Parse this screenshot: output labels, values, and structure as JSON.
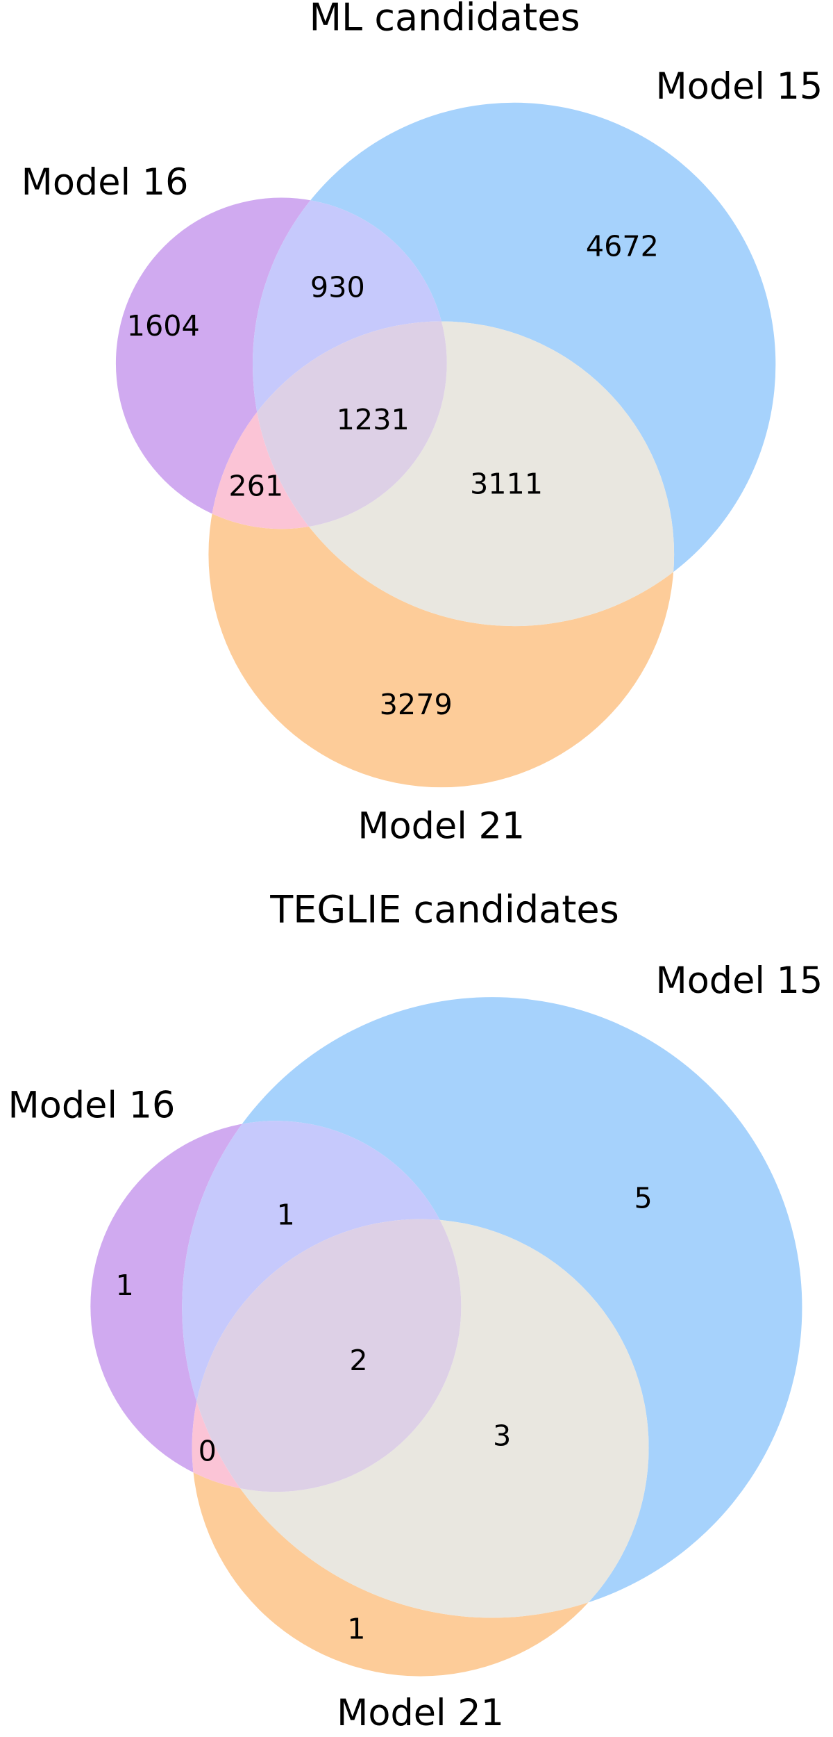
{
  "chart_data": [
    {
      "type": "venn",
      "title": "ML candidates",
      "sets": [
        {
          "name": "Model 16",
          "color": "#d0aaf0"
        },
        {
          "name": "Model 15",
          "color": "#a6d2fc"
        },
        {
          "name": "Model 21",
          "color": "#fdcc99"
        }
      ],
      "regions": [
        {
          "sets": [
            0
          ],
          "value": 1604,
          "color": "#d0aaf0"
        },
        {
          "sets": [
            1
          ],
          "value": 4672,
          "color": "#a6d2fc"
        },
        {
          "sets": [
            2
          ],
          "value": 3279,
          "color": "#fdcc99"
        },
        {
          "sets": [
            0,
            1
          ],
          "value": 930,
          "color": "#c6c9fc"
        },
        {
          "sets": [
            0,
            2
          ],
          "value": 261,
          "color": "#fbc4d6"
        },
        {
          "sets": [
            1,
            2
          ],
          "value": 3111,
          "color": "#e9e7e0"
        },
        {
          "sets": [
            0,
            1,
            2
          ],
          "value": 1231,
          "color": "#ddd0e6"
        }
      ]
    },
    {
      "type": "venn",
      "title": "TEGLIE candidates",
      "sets": [
        {
          "name": "Model 16",
          "color": "#d0aaf0"
        },
        {
          "name": "Model 15",
          "color": "#a6d2fc"
        },
        {
          "name": "Model 21",
          "color": "#fdcc99"
        }
      ],
      "regions": [
        {
          "sets": [
            0
          ],
          "value": 1,
          "color": "#d0aaf0"
        },
        {
          "sets": [
            1
          ],
          "value": 5,
          "color": "#a6d2fc"
        },
        {
          "sets": [
            2
          ],
          "value": 1,
          "color": "#fdcc99"
        },
        {
          "sets": [
            0,
            1
          ],
          "value": 1,
          "color": "#c6c9fc"
        },
        {
          "sets": [
            0,
            2
          ],
          "value": 0,
          "color": "#fbc4d6"
        },
        {
          "sets": [
            1,
            2
          ],
          "value": 3,
          "color": "#e9e7e0"
        },
        {
          "sets": [
            0,
            1,
            2
          ],
          "value": 2,
          "color": "#ddd0e6"
        }
      ]
    }
  ]
}
